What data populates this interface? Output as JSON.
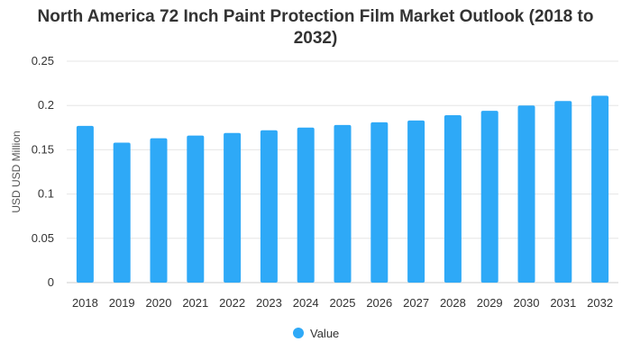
{
  "chart_data": {
    "type": "bar",
    "title": "North America 72 Inch Paint Protection Film Market Outlook (2018 to 2032)",
    "xlabel": "",
    "ylabel": "USD USD Million",
    "ylim": [
      0,
      0.25
    ],
    "yticks": [
      "0",
      "0.05",
      "0.1",
      "0.15",
      "0.2",
      "0.25"
    ],
    "categories": [
      "2018",
      "2019",
      "2020",
      "2021",
      "2022",
      "2023",
      "2024",
      "2025",
      "2026",
      "2027",
      "2028",
      "2029",
      "2030",
      "2031",
      "2032"
    ],
    "series": [
      {
        "name": "Value",
        "color": "#2EA9F7",
        "values": [
          0.177,
          0.158,
          0.163,
          0.166,
          0.169,
          0.172,
          0.175,
          0.178,
          0.181,
          0.183,
          0.189,
          0.194,
          0.2,
          0.205,
          0.211
        ]
      }
    ],
    "grid": true,
    "legend": "bottom-center"
  }
}
